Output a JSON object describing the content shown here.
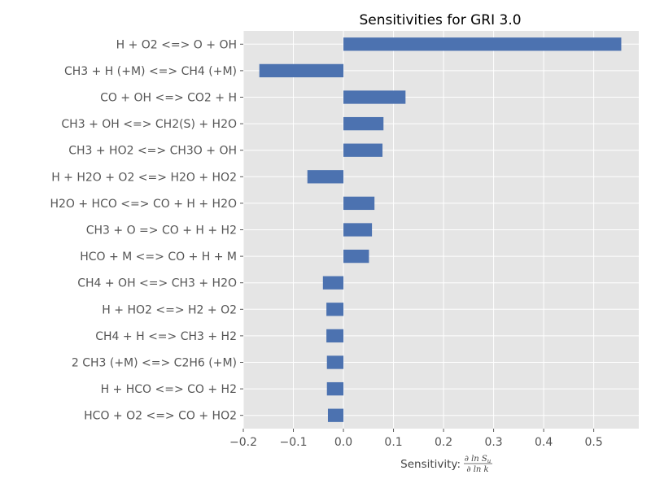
{
  "chart_data": {
    "type": "bar",
    "orientation": "horizontal",
    "title": "Sensitivities for GRI 3.0",
    "xlabel_prefix": "Sensitivity: ",
    "xlabel_fraction": {
      "numerator": "∂ ln S",
      "numerator_sub": "u",
      "denominator": "∂ ln k"
    },
    "ylabel": "",
    "xlim": [
      -0.2,
      0.59
    ],
    "xticks": [
      -0.2,
      -0.1,
      0.0,
      0.1,
      0.2,
      0.3,
      0.4,
      0.5
    ],
    "xtick_labels": [
      "−0.2",
      "−0.1",
      "0.0",
      "0.1",
      "0.2",
      "0.3",
      "0.4",
      "0.5"
    ],
    "grid": true,
    "bar_color": "#4c72b0",
    "background_color": "#e5e5e5",
    "categories": [
      "H + O2 <=> O + OH",
      "CH3 + H (+M) <=> CH4 (+M)",
      "CO + OH <=> CO2 + H",
      "CH3 + OH <=> CH2(S) + H2O",
      "CH3 + HO2 <=> CH3O + OH",
      "H + H2O + O2 <=> H2O + HO2",
      "H2O + HCO <=> CO + H + H2O",
      "CH3 + O => CO + H + H2",
      "HCO + M <=> CO + H + M",
      "CH4 + OH <=> CH3 + H2O",
      "H + HO2 <=> H2 + O2",
      "CH4 + H <=> CH3 + H2",
      "2 CH3 (+M) <=> C2H6 (+M)",
      "H + HCO <=> CO + H2",
      "HCO + O2 <=> CO + HO2"
    ],
    "values": [
      0.555,
      -0.168,
      0.124,
      0.08,
      0.078,
      -0.072,
      0.062,
      0.057,
      0.051,
      -0.041,
      -0.034,
      -0.034,
      -0.033,
      -0.033,
      -0.031
    ]
  }
}
